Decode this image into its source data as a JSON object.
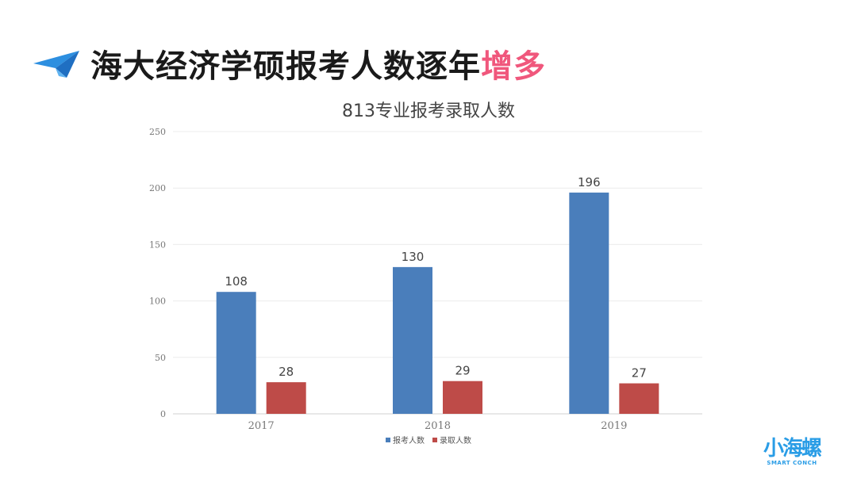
{
  "header": {
    "title_main": "海大经济学硕报考人数逐年",
    "title_highlight": "增多",
    "icon": "paper-plane-icon"
  },
  "chart_data": {
    "type": "bar",
    "title": "813专业报考录取人数",
    "categories": [
      "2017",
      "2018",
      "2019"
    ],
    "series": [
      {
        "name": "报考人数",
        "values": [
          108,
          130,
          196
        ],
        "color": "#4a7ebb"
      },
      {
        "name": "录取人数",
        "values": [
          28,
          29,
          27
        ],
        "color": "#be4b48"
      }
    ],
    "ylim": [
      0,
      250
    ],
    "yticks": [
      0,
      50,
      100,
      150,
      200,
      250
    ],
    "grid": true,
    "legend": "bottom"
  },
  "brand": {
    "mark": "小海螺",
    "sub": "SMART CONCH",
    "color": "#2a9de6"
  }
}
